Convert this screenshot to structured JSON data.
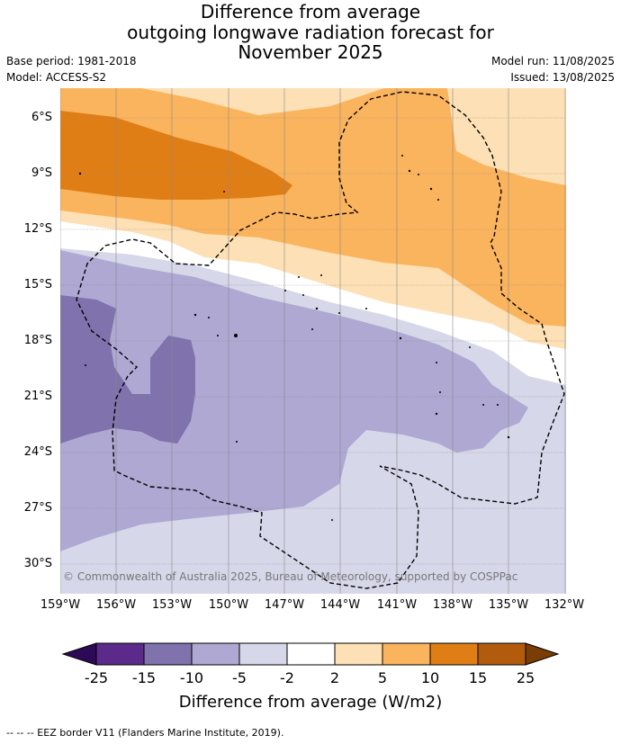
{
  "title": {
    "line1": "Difference from average",
    "line2": "outgoing longwave radiation forecast for",
    "line3": "November 2025"
  },
  "meta": {
    "base_period": "Base period: 1981-2018",
    "model": "Model: ACCESS-S2",
    "model_run": "Model run: 11/08/2025",
    "issued": "Issued: 13/08/2025"
  },
  "map": {
    "lat_labels": [
      "6°S",
      "9°S",
      "12°S",
      "15°S",
      "18°S",
      "21°S",
      "24°S",
      "27°S",
      "30°S"
    ],
    "lon_labels": [
      "159°W",
      "156°W",
      "153°W",
      "150°W",
      "147°W",
      "144°W",
      "141°W",
      "138°W",
      "135°W",
      "132°W"
    ],
    "copyright": "© Commonwealth of Australia 2025, Bureau of Meteorology, supported by COSPPac",
    "boundary_style": "dashed black",
    "gridlines": true
  },
  "colorbar": {
    "title": "Difference from average (W/m2)",
    "ticks": [
      "-25",
      "-15",
      "-10",
      "-5",
      "-2",
      "2",
      "5",
      "10",
      "15",
      "25"
    ],
    "colors": [
      "#2d0a55",
      "#5b2a8a",
      "#7f72ad",
      "#aea8d2",
      "#d7d7ea",
      "#ffffff",
      "#fde0b5",
      "#fbb45e",
      "#e07e16",
      "#b35b0c",
      "#7a3d06"
    ]
  },
  "footer": {
    "eez_note": "--  --  -- EEZ border V11 (Flanders Marine Institute, 2019)."
  }
}
